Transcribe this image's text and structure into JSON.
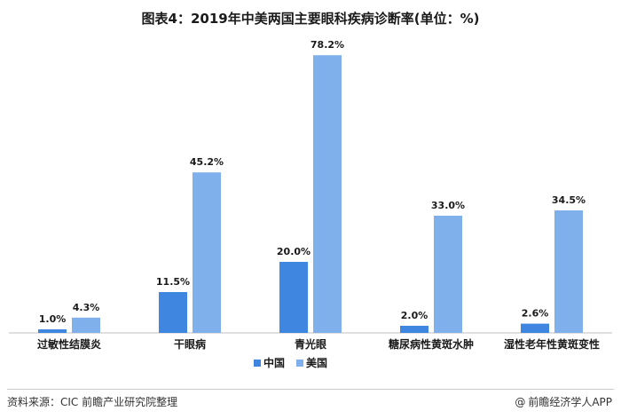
{
  "title": "图表4：2019年中美两国主要眼科疾病诊断率(单位：%)",
  "source": "资料来源：CIC 前瞻产业研究院整理",
  "brand": "@前瞻经济学人APP",
  "brand_icon": "at-sign-icon",
  "colors": {
    "china": "#3f86e0",
    "usa": "#7fb0ec",
    "axis": "#bfbfbf"
  },
  "chart_data": {
    "type": "bar",
    "categories": [
      "过敏性结膜炎",
      "干眼病",
      "青光眼",
      "糖尿病性黄斑水肿",
      "湿性老年性黄斑变性"
    ],
    "series": [
      {
        "name": "中国",
        "values": [
          1.0,
          11.5,
          20.0,
          2.0,
          2.6
        ],
        "labels": [
          "1.0%",
          "11.5%",
          "20.0%",
          "2.0%",
          "2.6%"
        ]
      },
      {
        "name": "美国",
        "values": [
          4.3,
          45.2,
          78.2,
          33.0,
          34.5
        ],
        "labels": [
          "4.3%",
          "45.2%",
          "78.2%",
          "33.0%",
          "34.5%"
        ]
      }
    ],
    "ylim": [
      0,
      80
    ],
    "grid": false,
    "legend": "bottom-center",
    "xlabel": "",
    "ylabel": ""
  }
}
